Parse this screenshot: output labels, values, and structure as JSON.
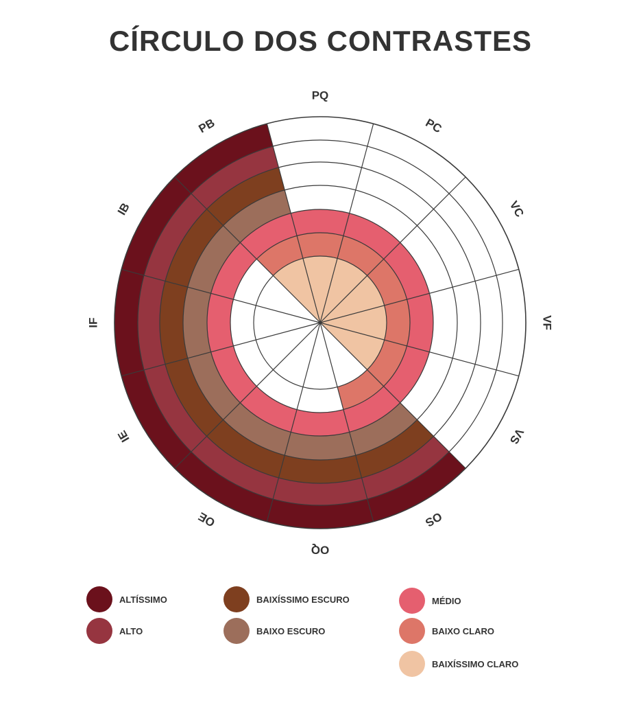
{
  "title": "CÍRCULO DOS CONTRASTES",
  "wheel": {
    "sectors": [
      "PQ",
      "PC",
      "VC",
      "VF",
      "VS",
      "OS",
      "OQ",
      "OE",
      "IE",
      "IF",
      "IB",
      "PB"
    ],
    "rings": [
      "baixissimo_claro",
      "baixo_claro",
      "medio",
      "baixo_escuro",
      "baixissimo_escuro",
      "alto",
      "altissimo"
    ],
    "fills": [
      [
        "baixissimo_claro",
        "baixo_claro",
        "medio",
        "none",
        "none",
        "none",
        "none"
      ],
      [
        "baixissimo_claro",
        "baixo_claro",
        "medio",
        "none",
        "none",
        "none",
        "none"
      ],
      [
        "baixissimo_claro",
        "baixo_claro",
        "medio",
        "none",
        "none",
        "none",
        "none"
      ],
      [
        "baixissimo_claro",
        "baixo_claro",
        "medio",
        "none",
        "none",
        "none",
        "none"
      ],
      [
        "baixissimo_claro",
        "baixo_claro",
        "medio",
        "none",
        "none",
        "none",
        "none"
      ],
      [
        "none",
        "baixo_claro",
        "medio",
        "baixo_escuro",
        "baixissimo_escuro",
        "alto",
        "altissimo"
      ],
      [
        "none",
        "none",
        "medio",
        "baixo_escuro",
        "baixissimo_escuro",
        "alto",
        "altissimo"
      ],
      [
        "none",
        "none",
        "medio",
        "baixo_escuro",
        "baixissimo_escuro",
        "alto",
        "altissimo"
      ],
      [
        "none",
        "none",
        "medio",
        "baixo_escuro",
        "baixissimo_escuro",
        "alto",
        "altissimo"
      ],
      [
        "none",
        "none",
        "medio",
        "baixo_escuro",
        "baixissimo_escuro",
        "alto",
        "altissimo"
      ],
      [
        "none",
        "none",
        "medio",
        "baixo_escuro",
        "baixissimo_escuro",
        "alto",
        "altissimo"
      ],
      [
        "baixissimo_claro",
        "baixo_claro",
        "medio",
        "baixo_escuro",
        "baixissimo_escuro",
        "alto",
        "altissimo"
      ]
    ]
  },
  "colors": {
    "altissimo": "#6b111c",
    "alto": "#963540",
    "baixissimo_escuro": "#7e3f1f",
    "baixo_escuro": "#9c6e5b",
    "medio": "#e55f6f",
    "baixo_claro": "#dd7668",
    "baixissimo_claro": "#f0c4a3",
    "none": "#ffffff",
    "line": "#3a3a3a"
  },
  "legend": [
    {
      "key": "altissimo",
      "label": "ALTÍSSIMO"
    },
    {
      "key": "alto",
      "label": "ALTO"
    },
    {
      "key": "baixissimo_escuro",
      "label": "BAIXÍSSIMO ESCURO"
    },
    {
      "key": "baixo_escuro",
      "label": "BAIXO ESCURO"
    },
    {
      "key": "medio",
      "label": "MÉDIO"
    },
    {
      "key": "baixo_claro",
      "label": "BAIXO CLARO"
    },
    {
      "key": "baixissimo_claro",
      "label": "BAIXÍSSIMO CLARO"
    }
  ]
}
